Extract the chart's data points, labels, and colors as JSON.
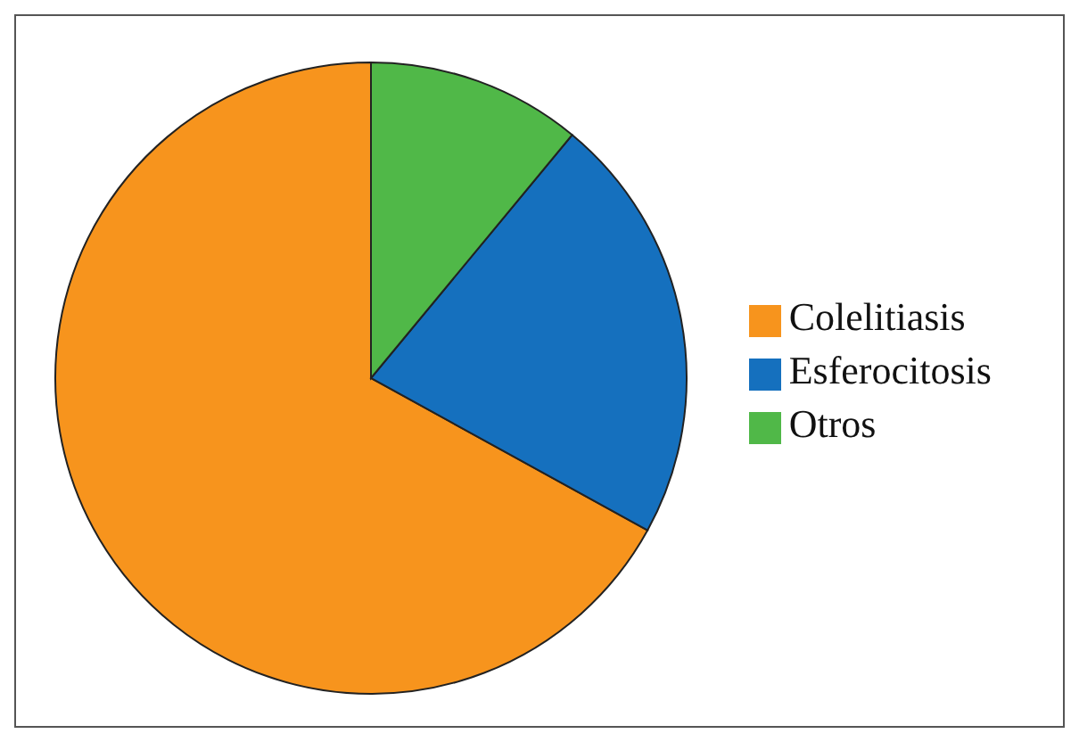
{
  "chart_data": {
    "type": "pie",
    "categories": [
      "Colelitiasis",
      "Esferocitosis",
      "Otros"
    ],
    "values": [
      67,
      22,
      11
    ],
    "colors": [
      "#f7941d",
      "#1570be",
      "#50b848"
    ],
    "legend": "right"
  }
}
